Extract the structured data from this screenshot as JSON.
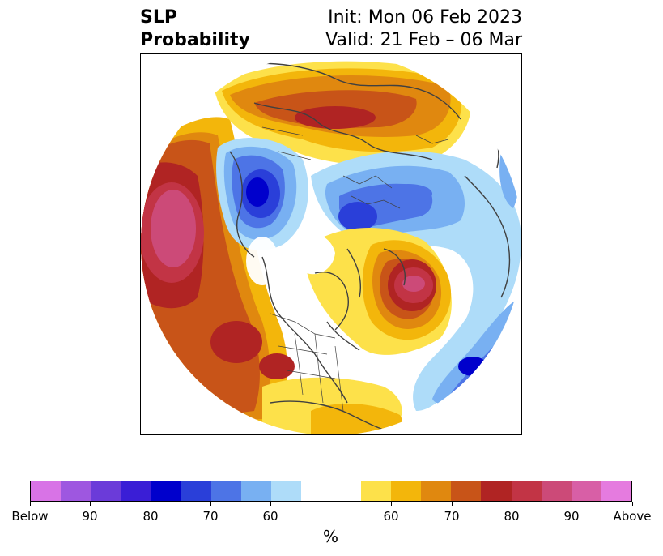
{
  "title": {
    "left_line1": "SLP",
    "left_line2": "Probability",
    "right_line1": "Init: Mon 06 Feb 2023",
    "right_line2": "Valid: 21 Feb – 06 Mar"
  },
  "map": {
    "projection": "north-polar-stereographic",
    "background_color": "#ffffff",
    "border_color": "#404040"
  },
  "colorbar": {
    "colors": [
      "#d873e6",
      "#9e57e0",
      "#6b3bd9",
      "#3a1ed6",
      "#0000cc",
      "#2a3fd9",
      "#4d74e6",
      "#78b0f2",
      "#aedcf9",
      "#ffffff",
      "#fde14a",
      "#f3b60b",
      "#e0880f",
      "#c85418",
      "#b02423",
      "#c23445",
      "#cc4a78",
      "#d85fa6",
      "#e57bdf"
    ],
    "ticks": [
      "Below",
      "90",
      "80",
      "70",
      "60",
      "60",
      "70",
      "80",
      "90",
      "Above"
    ],
    "unit": "%"
  }
}
